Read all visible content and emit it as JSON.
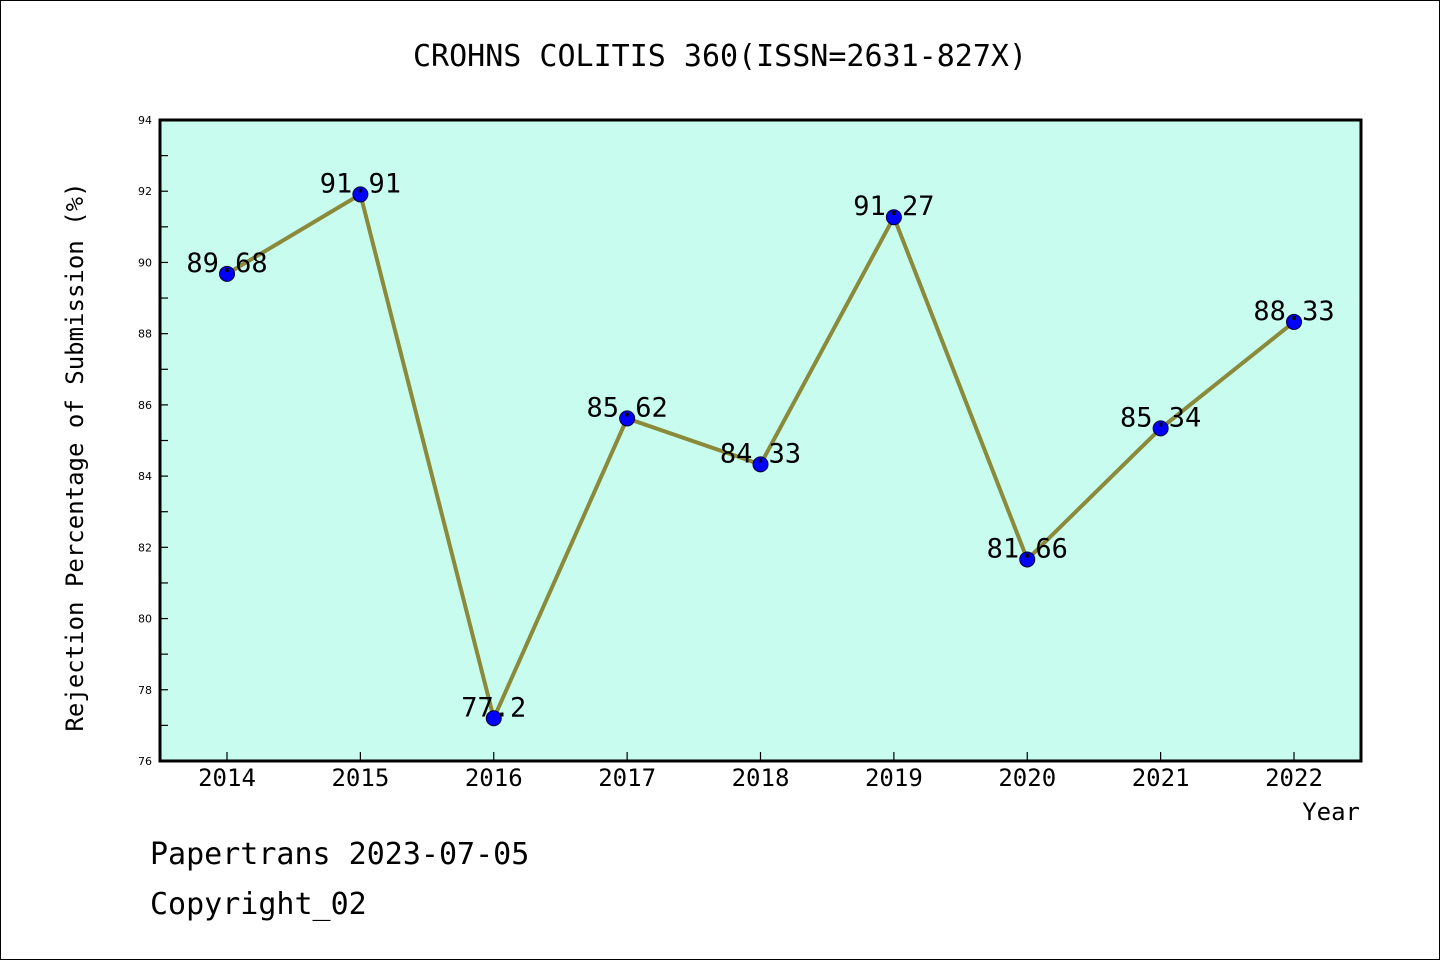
{
  "chart_data": {
    "type": "line",
    "title": "CROHNS COLITIS 360(ISSN=2631-827X)",
    "xlabel": "Year",
    "ylabel": "Rejection Percentage of Submission (%)",
    "categories": [
      "2014",
      "2015",
      "2016",
      "2017",
      "2018",
      "2019",
      "2020",
      "2021",
      "2022"
    ],
    "values": [
      89.68,
      91.91,
      77.2,
      85.62,
      84.33,
      91.27,
      81.66,
      85.34,
      88.33
    ],
    "data_labels": [
      "89.68",
      "91.91",
      "77.2",
      "85.62",
      "84.33",
      "91.27",
      "81.66",
      "85.34",
      "88.33"
    ],
    "ylim": [
      76,
      94
    ],
    "y_ticks": [
      76,
      78,
      80,
      82,
      84,
      86,
      88,
      90,
      92,
      94
    ],
    "grid": false,
    "legend": "none",
    "colors": {
      "plot_background": "#c8fcee",
      "line": "#8b8a3a",
      "marker": "#0000ff",
      "axes": "#000000"
    }
  },
  "footer": {
    "line1": "Papertrans 2023-07-05",
    "line2": "Copyright_02"
  }
}
